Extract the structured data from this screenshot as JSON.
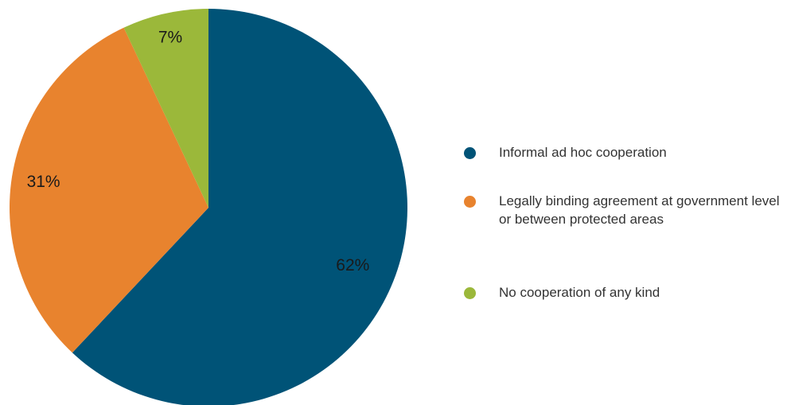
{
  "chart_data": {
    "type": "pie",
    "title": "",
    "slices": [
      {
        "label": "Informal ad hoc cooperation",
        "value": 62,
        "display": "62%",
        "color": "#005377"
      },
      {
        "label": "Legally binding agreement at government level or between protected areas",
        "value": 31,
        "display": "31%",
        "color": "#E8832E"
      },
      {
        "label": "No cooperation of any kind",
        "value": 7,
        "display": "7%",
        "color": "#9BB83A"
      }
    ],
    "legend_position": "right"
  }
}
